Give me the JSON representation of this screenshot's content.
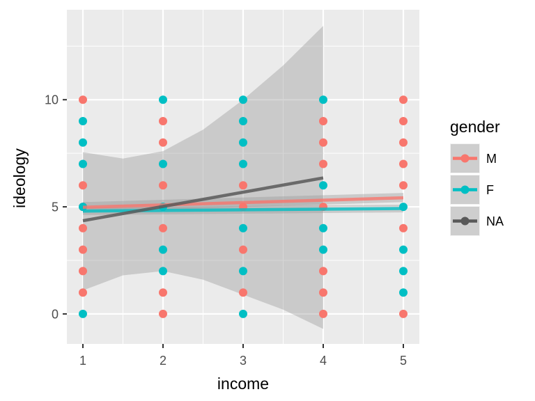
{
  "chart_data": {
    "type": "scatter",
    "title": "",
    "xlabel": "income",
    "ylabel": "ideology",
    "xlim": [
      0.8,
      5.2
    ],
    "ylim": [
      -1.4,
      14.2
    ],
    "x_ticks": [
      "1",
      "2",
      "3",
      "4",
      "5"
    ],
    "y_ticks": [
      "0",
      "5",
      "10"
    ],
    "grid": true,
    "legend_position": "right",
    "legend_title": "gender",
    "colors": {
      "M": "#F8766D",
      "F": "#00BFC4",
      "NA": "#595959",
      "band": "#999999",
      "panel": "#ebebeb"
    },
    "series": [
      {
        "name": "M",
        "points": [
          [
            1,
            10
          ],
          [
            1,
            6
          ],
          [
            1,
            5
          ],
          [
            1,
            4
          ],
          [
            1,
            3
          ],
          [
            1,
            2
          ],
          [
            1,
            1
          ],
          [
            2,
            9
          ],
          [
            2,
            8
          ],
          [
            2,
            6
          ],
          [
            2,
            4
          ],
          [
            2,
            1
          ],
          [
            2,
            0
          ],
          [
            3,
            6
          ],
          [
            3,
            5
          ],
          [
            3,
            3
          ],
          [
            3,
            1
          ],
          [
            4,
            9
          ],
          [
            4,
            8
          ],
          [
            4,
            7
          ],
          [
            4,
            5
          ],
          [
            4,
            2
          ],
          [
            4,
            1
          ],
          [
            4,
            0
          ],
          [
            5,
            10
          ],
          [
            5,
            9
          ],
          [
            5,
            8
          ],
          [
            5,
            7
          ],
          [
            5,
            6
          ],
          [
            5,
            4
          ],
          [
            5,
            0
          ]
        ],
        "fit": {
          "x": [
            1,
            5
          ],
          "y": [
            4.98,
            5.42
          ]
        },
        "band": {
          "x": [
            1,
            5
          ],
          "lower": [
            4.75,
            5.22
          ],
          "upper": [
            5.22,
            5.65
          ]
        }
      },
      {
        "name": "F",
        "points": [
          [
            1,
            9
          ],
          [
            1,
            8
          ],
          [
            1,
            7
          ],
          [
            1,
            5
          ],
          [
            1,
            0
          ],
          [
            2,
            10
          ],
          [
            2,
            7
          ],
          [
            2,
            5
          ],
          [
            2,
            3
          ],
          [
            2,
            2
          ],
          [
            3,
            10
          ],
          [
            3,
            9
          ],
          [
            3,
            8
          ],
          [
            3,
            7
          ],
          [
            3,
            4
          ],
          [
            3,
            2
          ],
          [
            3,
            0
          ],
          [
            4,
            10
          ],
          [
            4,
            6
          ],
          [
            4,
            4
          ],
          [
            4,
            3
          ],
          [
            5,
            5
          ],
          [
            5,
            3
          ],
          [
            5,
            2
          ],
          [
            5,
            1
          ]
        ],
        "fit": {
          "x": [
            1,
            5
          ],
          "y": [
            4.8,
            4.92
          ]
        },
        "band": {
          "x": [
            1,
            5
          ],
          "lower": [
            4.62,
            4.74
          ],
          "upper": [
            4.98,
            5.1
          ]
        }
      },
      {
        "name": "NA",
        "points": [],
        "fit": {
          "x": [
            1,
            4
          ],
          "y": [
            4.35,
            6.35
          ]
        },
        "band": {
          "x": [
            1,
            1.5,
            2,
            2.5,
            3,
            3.5,
            4
          ],
          "lower": [
            1.1,
            1.8,
            2.0,
            1.6,
            0.9,
            0.2,
            -0.7
          ],
          "upper": [
            7.55,
            7.25,
            7.6,
            8.6,
            10.0,
            11.6,
            13.45
          ]
        }
      }
    ]
  }
}
